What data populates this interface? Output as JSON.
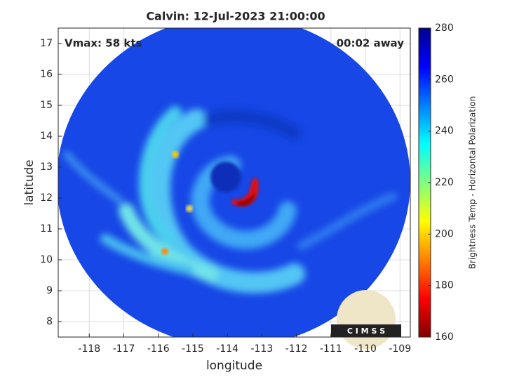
{
  "chart_data": {
    "type": "image",
    "title": "Calvin: 12-Jul-2023 21:00:00",
    "annotations": [
      "Vmax: 58 kts",
      "00:02 away"
    ],
    "xlabel": "longitude",
    "ylabel": "latitude",
    "xlim": [
      -118.9,
      -108.7
    ],
    "xticks": [
      -118,
      -117,
      -116,
      -115,
      -114,
      -113,
      -112,
      -111,
      -110,
      -109
    ],
    "ylim": [
      7.5,
      17.5
    ],
    "yticks": [
      8,
      9,
      10,
      11,
      12,
      13,
      14,
      15,
      16,
      17
    ],
    "grid": true,
    "colorbar": {
      "label": "Brightness Temp - Horizontal Polarization",
      "lim": [
        160,
        280
      ],
      "ticks": [
        160,
        180,
        200,
        220,
        240,
        260,
        280
      ],
      "colormap": [
        "#800000",
        "#ff0000",
        "#ff8000",
        "#ffff00",
        "#80ff80",
        "#00ffff",
        "#0080ff",
        "#0000ff",
        "#00008f"
      ]
    },
    "logo": "C I M S S"
  }
}
